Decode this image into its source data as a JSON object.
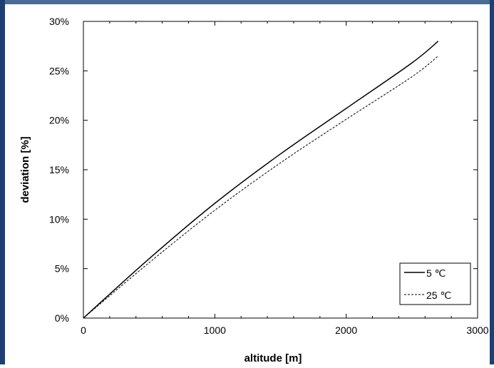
{
  "colors": {
    "frame_top": "#4a6b94",
    "frame_left": "#1f3f73",
    "frame_right": "#1f3f73",
    "line": "#000000"
  },
  "chart_data": {
    "type": "line",
    "title": "",
    "xlabel": "altitude [m]",
    "ylabel": "deviation [%]",
    "xlim": [
      0,
      3000
    ],
    "ylim": [
      0,
      30
    ],
    "x_ticks": [
      0,
      1000,
      2000,
      3000
    ],
    "x_tick_labels": [
      "0",
      "1000",
      "2000",
      "3000"
    ],
    "y_ticks": [
      0,
      5,
      10,
      15,
      20,
      25,
      30
    ],
    "y_tick_labels": [
      "0%",
      "5%",
      "10%",
      "15%",
      "20%",
      "25%",
      "30%"
    ],
    "grid": false,
    "legend_position": "bottom-right",
    "series": [
      {
        "name": "5 ℃",
        "style": "solid",
        "x": [
          0,
          500,
          1000,
          1500,
          2000,
          2500,
          2700
        ],
        "y": [
          0,
          6.0,
          11.6,
          16.6,
          21.2,
          25.8,
          28.0
        ]
      },
      {
        "name": "25 ℃",
        "style": "dashed",
        "x": [
          0,
          500,
          1000,
          1500,
          2000,
          2500,
          2700
        ],
        "y": [
          0,
          5.6,
          10.9,
          15.7,
          20.1,
          24.4,
          26.5
        ]
      }
    ]
  }
}
